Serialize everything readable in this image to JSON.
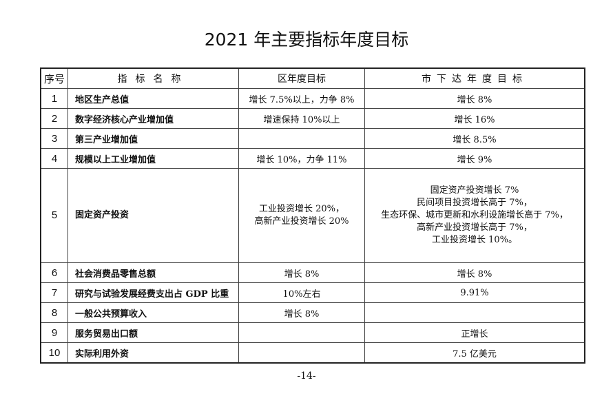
{
  "title": "2021 年主要指标年度目标",
  "headers": [
    "序号",
    "指标名称",
    "区年度目标",
    "市下达年度目标"
  ],
  "rows": [
    {
      "no": "1",
      "name": "地区生产总值",
      "district": "增长 7.5%以上，力争 8%",
      "city": [
        "增长 8%"
      ]
    },
    {
      "no": "2",
      "name": "数字经济核心产业增加值",
      "district": "增速保持 10%以上",
      "city": [
        "增长 16%"
      ]
    },
    {
      "no": "3",
      "name": "第三产业增加值",
      "district": "",
      "city": [
        "增长 8.5%"
      ]
    },
    {
      "no": "4",
      "name": "规模以上工业增加值",
      "district": "增长 10%，力争 11%",
      "city": [
        "增长 9%"
      ]
    },
    {
      "no": "5",
      "name": "固定资产投资",
      "district": [
        "工业投资增长 20%，",
        "高新产业投资增长 20%"
      ],
      "city": [
        "固定资产投资增长 7%",
        "民间项目投资增长高于 7%，",
        "生态环保、城市更新和水利设施增长高于 7%，",
        "高新产业投资增长高于 7%，",
        "工业投资增长 10%。"
      ]
    },
    {
      "no": "6",
      "name": "社会消费品零售总额",
      "district": "增长 8%",
      "city": [
        "增长 8%"
      ]
    },
    {
      "no": "7",
      "name": "研究与试验发展经费支出占 GDP 比重",
      "district": "10%左右",
      "city": [
        "9.91%"
      ]
    },
    {
      "no": "8",
      "name": "一般公共预算收入",
      "district": "增长 8%",
      "city": [
        ""
      ]
    },
    {
      "no": "9",
      "name": "服务贸易出口额",
      "district": "",
      "city": [
        "正增长"
      ]
    },
    {
      "no": "10",
      "name": "实际利用外资",
      "district": "",
      "city": [
        "7.5 亿美元"
      ]
    }
  ],
  "page_number": "-14-"
}
